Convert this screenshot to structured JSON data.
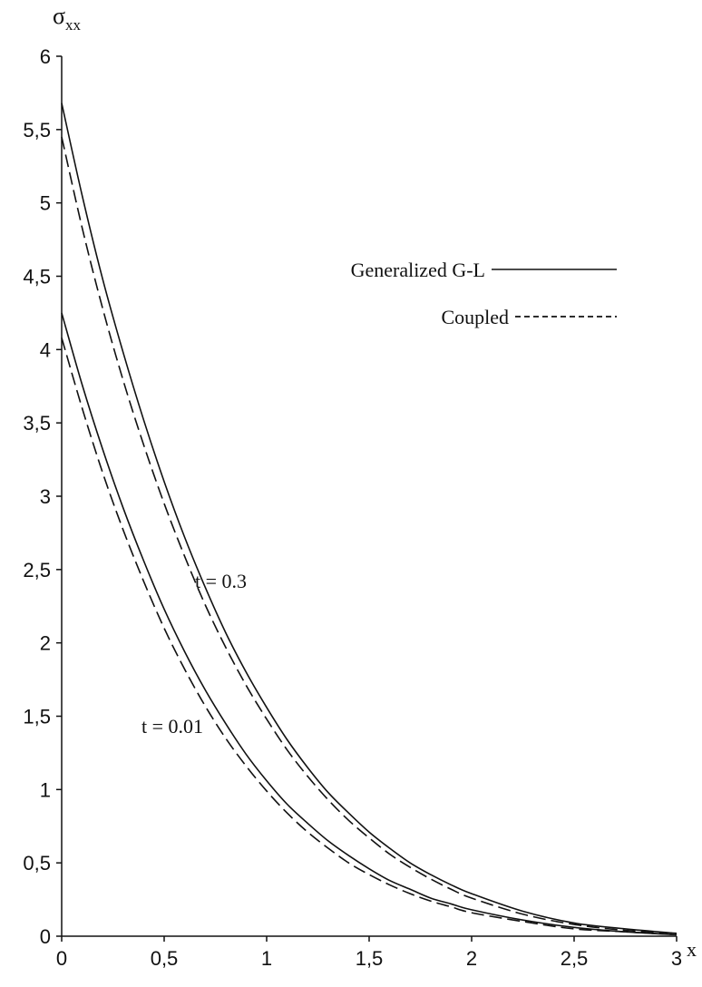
{
  "chart_data": {
    "type": "line",
    "title": "",
    "ylabel_main": "σ",
    "ylabel_sub": "xx",
    "xlabel": "x",
    "xlim": [
      0,
      3
    ],
    "ylim": [
      0,
      6
    ],
    "xticks": [
      "0",
      "0,5",
      "1",
      "1,5",
      "2",
      "2,5",
      "3"
    ],
    "yticks": [
      "0",
      "0,5",
      "1",
      "1,5",
      "2",
      "2,5",
      "3",
      "3,5",
      "4",
      "4,5",
      "5",
      "5,5",
      "6"
    ],
    "xtick_values": [
      0,
      0.5,
      1,
      1.5,
      2,
      2.5,
      3
    ],
    "ytick_values": [
      0,
      0.5,
      1,
      1.5,
      2,
      2.5,
      3,
      3.5,
      4,
      4.5,
      5,
      5.5,
      6
    ],
    "legend": [
      {
        "label": "Generalized G-L",
        "style": "solid"
      },
      {
        "label": "Coupled",
        "style": "dashed"
      }
    ],
    "legend_position": "right",
    "grid": false,
    "annotations": [
      {
        "text": "t = 0.3",
        "x": 0.65,
        "y": 2.55
      },
      {
        "text": "t = 0.01",
        "x": 0.55,
        "y": 1.25
      }
    ],
    "series": [
      {
        "style": "solid",
        "group": "t = 0.3",
        "x": [
          0,
          0.1,
          0.2,
          0.3,
          0.4,
          0.5,
          0.6,
          0.7,
          0.8,
          0.9,
          1.0,
          1.1,
          1.2,
          1.3,
          1.4,
          1.5,
          1.6,
          1.7,
          1.8,
          1.9,
          2.0,
          2.25,
          2.5,
          2.75,
          3.0
        ],
        "y": [
          5.68,
          5.05,
          4.48,
          3.98,
          3.52,
          3.1,
          2.72,
          2.38,
          2.07,
          1.8,
          1.56,
          1.34,
          1.15,
          0.98,
          0.84,
          0.71,
          0.6,
          0.5,
          0.42,
          0.35,
          0.29,
          0.17,
          0.09,
          0.05,
          0.02
        ]
      },
      {
        "style": "dashed",
        "group": "t = 0.3",
        "x": [
          0,
          0.1,
          0.2,
          0.3,
          0.4,
          0.5,
          0.6,
          0.7,
          0.8,
          0.9,
          1.0,
          1.1,
          1.2,
          1.3,
          1.4,
          1.5,
          1.6,
          1.7,
          1.8,
          1.9,
          2.0,
          2.25,
          2.5,
          2.75,
          3.0
        ],
        "y": [
          5.45,
          4.83,
          4.28,
          3.79,
          3.35,
          2.95,
          2.59,
          2.26,
          1.97,
          1.71,
          1.48,
          1.27,
          1.09,
          0.93,
          0.79,
          0.67,
          0.56,
          0.47,
          0.39,
          0.32,
          0.26,
          0.15,
          0.08,
          0.04,
          0.02
        ]
      },
      {
        "style": "solid",
        "group": "t = 0.01",
        "x": [
          0,
          0.1,
          0.2,
          0.3,
          0.4,
          0.5,
          0.6,
          0.7,
          0.8,
          0.9,
          1.0,
          1.1,
          1.2,
          1.3,
          1.4,
          1.5,
          1.6,
          1.7,
          1.8,
          1.9,
          2.0,
          2.25,
          2.5,
          2.75,
          3.0
        ],
        "y": [
          4.25,
          3.76,
          3.32,
          2.92,
          2.56,
          2.23,
          1.94,
          1.68,
          1.45,
          1.24,
          1.06,
          0.9,
          0.77,
          0.65,
          0.55,
          0.46,
          0.38,
          0.32,
          0.26,
          0.22,
          0.18,
          0.11,
          0.06,
          0.03,
          0.01
        ]
      },
      {
        "style": "dashed",
        "group": "t = 0.01",
        "x": [
          0,
          0.1,
          0.2,
          0.3,
          0.4,
          0.5,
          0.6,
          0.7,
          0.8,
          0.9,
          1.0,
          1.1,
          1.2,
          1.3,
          1.4,
          1.5,
          1.6,
          1.7,
          1.8,
          1.9,
          2.0,
          2.25,
          2.5,
          2.75,
          3.0
        ],
        "y": [
          4.08,
          3.6,
          3.16,
          2.77,
          2.42,
          2.1,
          1.82,
          1.57,
          1.35,
          1.16,
          0.99,
          0.84,
          0.71,
          0.6,
          0.5,
          0.42,
          0.35,
          0.29,
          0.24,
          0.2,
          0.16,
          0.1,
          0.05,
          0.03,
          0.01
        ]
      }
    ]
  }
}
